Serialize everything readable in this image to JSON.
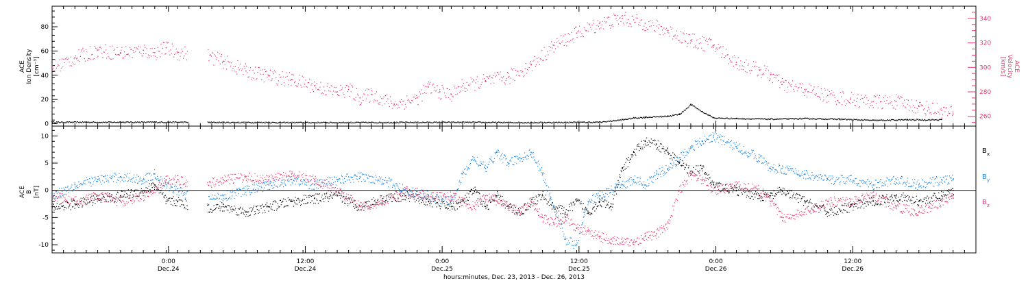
{
  "chart_data": [
    {
      "type": "scatter",
      "panel": "top",
      "left_axis_label": [
        "ACE",
        "Ion Density",
        "[cm⁻³]"
      ],
      "right_axis_label": [
        "ACE",
        "Velocity",
        "[km/s]"
      ],
      "ylim_left": [
        -2,
        97
      ],
      "yticks_left": [
        0,
        20,
        40,
        60,
        80
      ],
      "ylim_right": [
        252,
        350
      ],
      "yticks_right": [
        260,
        280,
        300,
        320,
        340
      ],
      "series": [
        {
          "axis": "left",
          "color": "#000000",
          "x": [
            0,
            3,
            6,
            9,
            12,
            15,
            18,
            19,
            20,
            24,
            30,
            36,
            42,
            48,
            50,
            51,
            52,
            54,
            55,
            56,
            57,
            58,
            60,
            63,
            66,
            69,
            72,
            75,
            78
          ],
          "y": [
            1.5,
            1.5,
            1.5,
            1.5,
            1.5,
            1.3,
            1.3,
            1.3,
            1.2,
            1.2,
            1.3,
            1.4,
            1.2,
            1.5,
            3.5,
            5.0,
            5.5,
            6.5,
            8.0,
            16.0,
            10.0,
            5.0,
            4.5,
            4.0,
            4.5,
            4.0,
            3.0,
            3.5,
            3.5
          ],
          "gap": [
            11.9,
            13.6
          ]
        },
        {
          "axis": "right",
          "color": "#e8386b",
          "x": [
            0,
            2,
            4,
            6,
            8,
            9,
            10,
            11,
            13,
            15,
            17,
            19,
            21,
            23,
            25,
            26,
            27,
            28,
            30,
            32,
            33,
            34,
            35,
            36,
            38,
            40,
            42,
            44,
            46,
            48,
            50,
            52,
            54,
            56,
            58,
            60,
            62,
            63,
            64,
            66,
            68,
            70,
            72,
            74,
            76,
            78,
            79
          ],
          "y": [
            300,
            308,
            314,
            312,
            314,
            312,
            316,
            312,
            312,
            305,
            297,
            293,
            290,
            285,
            280,
            282,
            275,
            278,
            270,
            275,
            284,
            280,
            278,
            285,
            289,
            292,
            302,
            318,
            328,
            336,
            340,
            336,
            330,
            322,
            318,
            304,
            298,
            294,
            286,
            282,
            277,
            274,
            272,
            272,
            268,
            265,
            262
          ],
          "gap": [
            11.9,
            13.6
          ]
        }
      ]
    },
    {
      "type": "scatter",
      "panel": "bottom",
      "left_axis_label": [
        "ACE",
        "B",
        "[nT]"
      ],
      "ylim": [
        -11.5,
        11.8
      ],
      "yticks": [
        -10,
        -5,
        0,
        5,
        10
      ],
      "zero_line": true,
      "series": [
        {
          "name_main": "B",
          "name_sub": "x",
          "color": "#000000",
          "x": [
            0,
            2,
            4,
            6,
            8,
            9,
            10,
            11,
            13,
            15,
            17,
            19,
            21,
            23,
            25,
            27,
            29,
            31,
            33,
            35,
            36,
            37,
            38,
            39,
            40,
            41,
            42,
            43,
            44,
            45,
            46,
            47,
            48,
            49,
            50,
            51,
            52,
            53,
            54,
            55,
            56,
            57,
            58,
            60,
            62,
            63,
            64,
            66,
            68,
            70,
            72,
            74,
            76,
            78,
            79
          ],
          "y": [
            -3,
            -2.5,
            -1.5,
            -1,
            0,
            1,
            -2,
            -2,
            -3.5,
            -3,
            -4,
            -3,
            -2,
            -1.5,
            -1,
            -3,
            -1.5,
            -1,
            -2,
            -3,
            -2,
            0,
            -3,
            -1,
            -3,
            -4,
            -2,
            -1,
            -3,
            -4,
            -2,
            -4,
            -2,
            -3,
            4,
            7,
            9,
            8.5,
            7,
            5,
            3.5,
            4,
            1,
            0,
            -1,
            -1,
            0,
            -2,
            -4,
            -3,
            -2,
            -1,
            -2,
            -1,
            0
          ],
          "gap": [
            11.9,
            13.6
          ]
        },
        {
          "name_main": "B",
          "name_sub": "y",
          "color": "#1e88e5",
          "x": [
            0,
            2,
            4,
            6,
            8,
            9,
            10,
            11,
            13,
            15,
            17,
            19,
            21,
            23,
            25,
            27,
            29,
            31,
            33,
            35,
            36,
            37,
            38,
            39,
            40,
            41,
            42,
            43,
            44,
            45,
            46,
            47,
            48,
            49,
            50,
            51,
            52,
            53,
            54,
            55,
            56,
            57,
            58,
            60,
            62,
            63,
            64,
            66,
            68,
            70,
            72,
            74,
            76,
            78,
            79
          ],
          "y": [
            -1,
            1,
            2,
            2.5,
            2,
            3,
            1,
            0,
            -2,
            -1,
            0,
            1,
            2,
            1,
            2,
            2.5,
            2,
            0,
            -1,
            -2,
            3,
            6,
            4,
            7,
            5,
            6,
            7,
            3,
            -3,
            -9,
            -10,
            -2,
            -1,
            0,
            1,
            2,
            1,
            3,
            4,
            6,
            8,
            9,
            10,
            8,
            6,
            4,
            4,
            3,
            2,
            2,
            1,
            2,
            1,
            2,
            2
          ],
          "gap": [
            11.9,
            13.6
          ]
        },
        {
          "name_main": "B",
          "name_sub": "z",
          "color": "#e8386b",
          "x": [
            0,
            2,
            4,
            6,
            8,
            9,
            10,
            11,
            13,
            15,
            17,
            19,
            21,
            23,
            25,
            27,
            29,
            31,
            33,
            35,
            36,
            37,
            38,
            39,
            40,
            41,
            42,
            43,
            44,
            45,
            46,
            47,
            48,
            49,
            50,
            51,
            52,
            53,
            54,
            55,
            56,
            57,
            58,
            60,
            62,
            63,
            64,
            66,
            68,
            70,
            72,
            74,
            76,
            78,
            79
          ],
          "y": [
            -1,
            -2,
            -1,
            -2,
            -1,
            0,
            2,
            2,
            1,
            2,
            2.5,
            2,
            3,
            2,
            0,
            -3,
            -2,
            0,
            -1,
            -1,
            -2,
            -3,
            -1,
            -2,
            -3,
            -4,
            -2,
            -5,
            -6,
            -5,
            -7,
            -7.5,
            -8.5,
            -9,
            -9.5,
            -9.5,
            -8.5,
            -8,
            -6,
            0,
            3,
            2,
            0,
            1,
            0,
            -2,
            -5,
            -4,
            -2,
            -2,
            -1,
            -3,
            -4,
            -2,
            -1
          ],
          "gap": [
            11.9,
            13.6
          ]
        }
      ]
    }
  ],
  "x_axis": {
    "xlim": [
      0,
      81
    ],
    "tick_labels": [
      {
        "x": 10.2,
        "time": "0:00",
        "date": "Dec.24"
      },
      {
        "x": 22.2,
        "time": "12:00",
        "date": "Dec.24"
      },
      {
        "x": 34.2,
        "time": "0:00",
        "date": "Dec.25"
      },
      {
        "x": 46.2,
        "time": "12:00",
        "date": "Dec.25"
      },
      {
        "x": 58.2,
        "time": "0:00",
        "date": "Dec.26"
      },
      {
        "x": 70.2,
        "time": "12:00",
        "date": "Dec.26"
      }
    ],
    "minor_tick_step_hours": 1,
    "xlabel": "hours:minutes, Dec. 23, 2013 - Dec. 26, 2013"
  }
}
